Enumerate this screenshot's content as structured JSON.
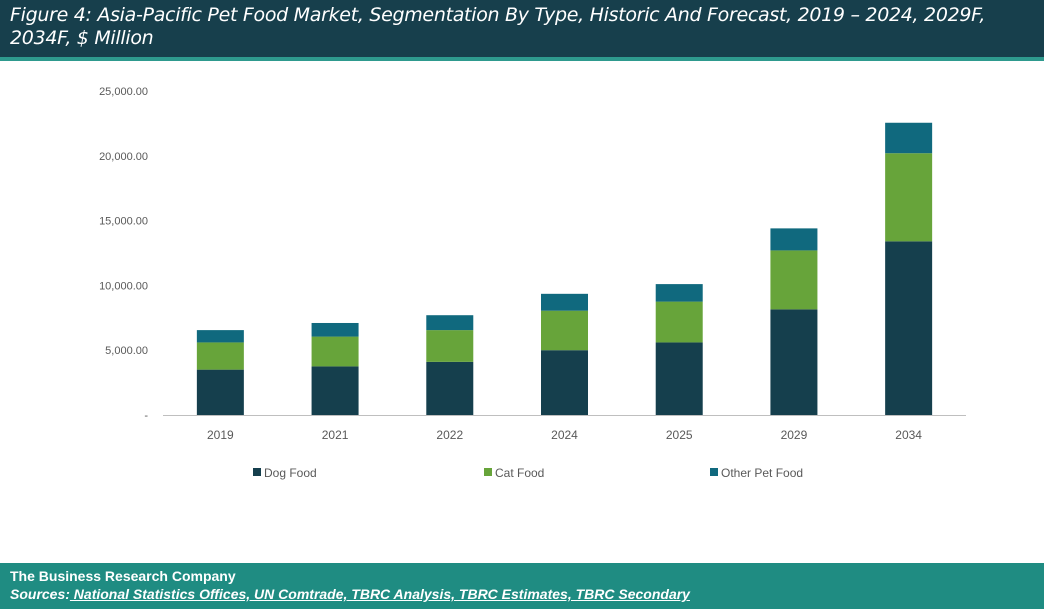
{
  "title": "Figure 4: Asia-Pacific Pet Food Market, Segmentation By Type, Historic And Forecast, 2019 – 2024, 2029F, 2034F, $ Million",
  "footer": {
    "company": "The Business Research Company",
    "sources_label": "Sources:",
    "sources": " National Statistics Offices, UN Comtrade, TBRC Analysis, TBRC Estimates, TBRC Secondary"
  },
  "colors": {
    "dog_food": "#153f4d",
    "cat_food": "#67a43a",
    "other_pet_food": "#10697e",
    "axis": "#bfbfbf",
    "tick_text": "#595959"
  },
  "chart_data": {
    "type": "bar",
    "stacked": true,
    "title": "Asia-Pacific Pet Food Market, Segmentation By Type, Historic And Forecast, 2019 – 2024, 2029F, 2034F, $ Million",
    "xlabel": "",
    "ylabel": "",
    "categories": [
      "2019",
      "2021",
      "2022",
      "2024",
      "2025",
      "2029",
      "2034"
    ],
    "series": [
      {
        "name": "Dog Food",
        "values": [
          3500,
          3750,
          4100,
          5000,
          5600,
          8150,
          13400
        ]
      },
      {
        "name": "Cat Food",
        "values": [
          2100,
          2300,
          2450,
          3050,
          3150,
          4550,
          6800
        ]
      },
      {
        "name": "Other Pet Food",
        "values": [
          950,
          1050,
          1150,
          1300,
          1350,
          1700,
          2350
        ]
      }
    ],
    "ylim": [
      0,
      25000
    ],
    "yticks": [
      0,
      5000,
      10000,
      15000,
      20000,
      25000
    ],
    "ytick_labels": [
      "-",
      "5,000.00",
      "10,000.00",
      "15,000.00",
      "20,000.00",
      "25,000.00"
    ],
    "grid": false,
    "legend": "bottom"
  }
}
